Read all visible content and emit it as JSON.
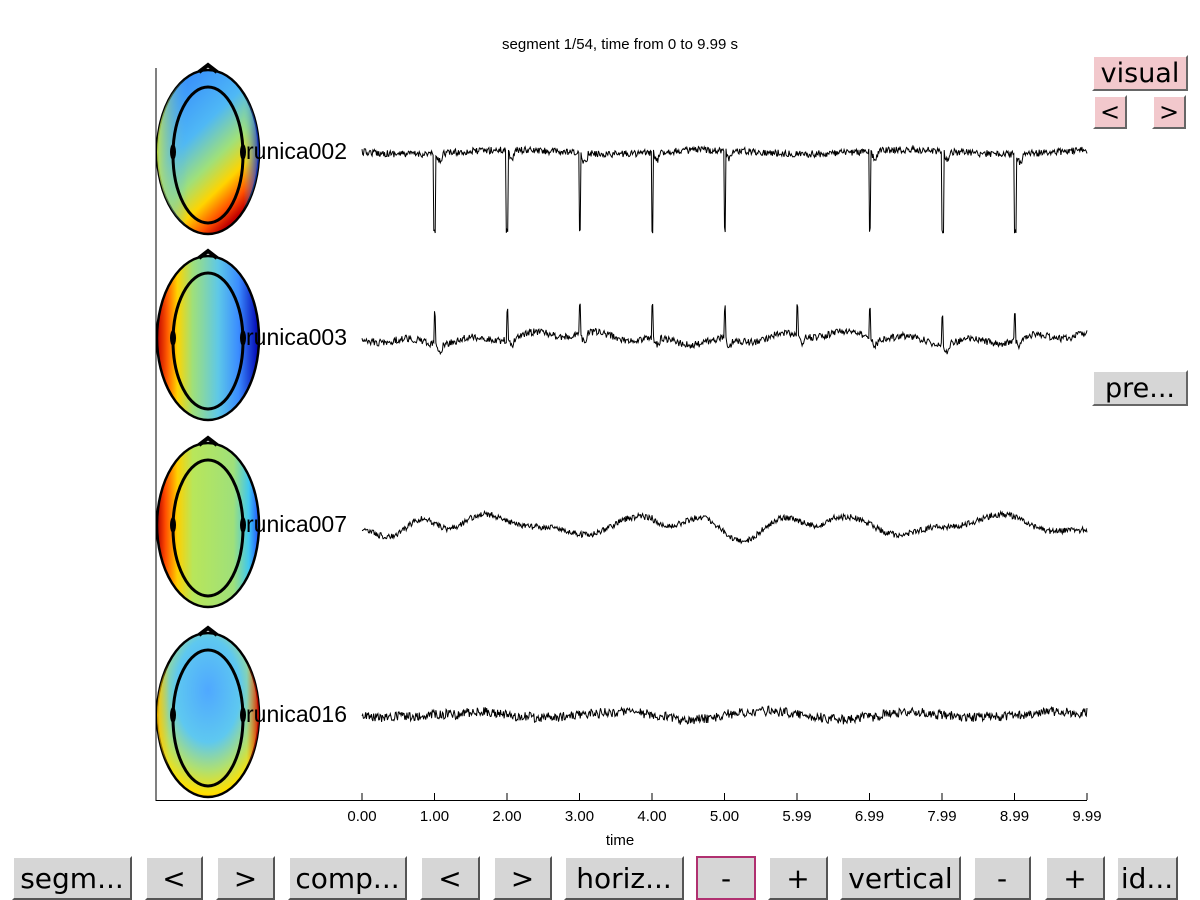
{
  "title": "segment 1/54, time from 0 to 9.99 s",
  "x_label": "time",
  "x_ticks": [
    "0.00",
    "1.00",
    "2.00",
    "3.00",
    "4.00",
    "5.00",
    "5.99",
    "6.99",
    "7.99",
    "8.99",
    "9.99"
  ],
  "components": [
    {
      "label": "runica002",
      "map": "ecg"
    },
    {
      "label": "runica003",
      "map": "lateral"
    },
    {
      "label": "runica007",
      "map": "temporal"
    },
    {
      "label": "runica016",
      "map": "mixed"
    }
  ],
  "side_buttons": {
    "visual": "visual",
    "prev": "<",
    "next": ">",
    "pre": "pre..."
  },
  "bottom_buttons": [
    {
      "label": "segm..."
    },
    {
      "label": "<"
    },
    {
      "label": ">"
    },
    {
      "label": "comp..."
    },
    {
      "label": "<"
    },
    {
      "label": ">"
    },
    {
      "label": "horiz..."
    },
    {
      "label": "-"
    },
    {
      "label": "+"
    },
    {
      "label": "vertical"
    },
    {
      "label": "-"
    },
    {
      "label": "+"
    },
    {
      "label": "id..."
    }
  ],
  "colors": {
    "trace": "#000000",
    "button_face": "#d6d6d6",
    "button_pink": "#f2c8cc",
    "active_border": "#b03070"
  },
  "chart_data": {
    "type": "line",
    "x_range": [
      0,
      9.99
    ],
    "series": [
      {
        "name": "runica002",
        "pattern": "sharp negative spikes",
        "spike_times": [
          1.0,
          2.0,
          3.0,
          4.0,
          5.0,
          7.0,
          8.0,
          9.0
        ]
      },
      {
        "name": "runica003",
        "pattern": "small positive spikes",
        "spike_times": [
          1.0,
          2.0,
          3.0,
          4.0,
          5.0,
          6.0,
          7.0,
          8.0,
          9.0
        ]
      },
      {
        "name": "runica007",
        "pattern": "slow waves"
      },
      {
        "name": "runica016",
        "pattern": "low amplitude noise"
      }
    ]
  }
}
